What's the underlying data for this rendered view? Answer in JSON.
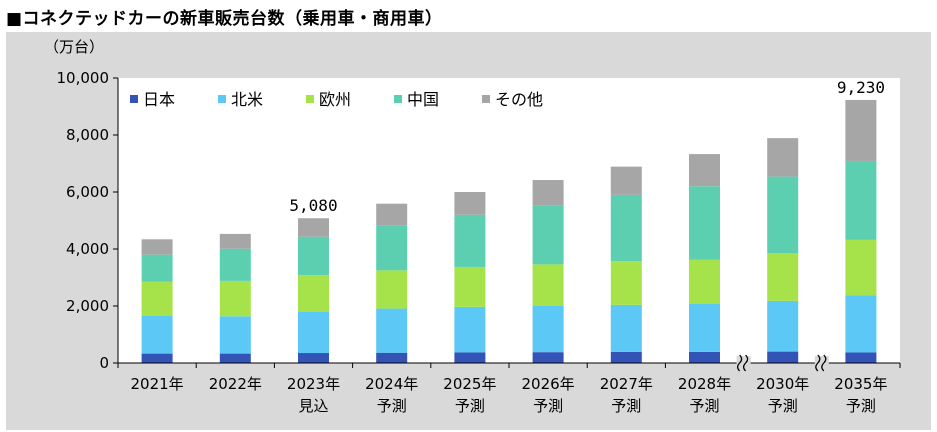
{
  "page": {
    "title": "■コネクテッドカーの新車販売台数（乗用車・商用車）"
  },
  "chart_data": {
    "type": "bar",
    "stacked": true,
    "unit_label": "（万台）",
    "categories": [
      "2021年",
      "2022年",
      "2023年",
      "2024年",
      "2025年",
      "2026年",
      "2027年",
      "2028年",
      "2030年",
      "2035年"
    ],
    "category_sublabels": [
      "",
      "",
      "見込",
      "予測",
      "予測",
      "予測",
      "予測",
      "予測",
      "予測",
      "予測"
    ],
    "ylim": [
      0,
      10000
    ],
    "yticks": [
      0,
      2000,
      4000,
      6000,
      8000,
      10000
    ],
    "ytick_labels": [
      "0",
      "2,000",
      "4,000",
      "6,000",
      "8,000",
      "10,000"
    ],
    "series": [
      {
        "name": "日本",
        "color": "#3353b6",
        "values": [
          330,
          330,
          350,
          360,
          370,
          380,
          390,
          390,
          400,
          370
        ]
      },
      {
        "name": "北米",
        "color": "#5bc8f5",
        "values": [
          1320,
          1310,
          1440,
          1550,
          1600,
          1620,
          1650,
          1680,
          1780,
          2000
        ]
      },
      {
        "name": "欧州",
        "color": "#a6e24a",
        "values": [
          1200,
          1240,
          1290,
          1340,
          1400,
          1460,
          1530,
          1550,
          1680,
          1950
        ]
      },
      {
        "name": "中国",
        "color": "#5ccfb0",
        "values": [
          950,
          1130,
          1350,
          1580,
          1830,
          2080,
          2330,
          2580,
          2680,
          2770
        ]
      },
      {
        "name": "その他",
        "color": "#a6a6a6",
        "values": [
          540,
          520,
          650,
          760,
          800,
          880,
          990,
          1130,
          1350,
          2140
        ]
      }
    ],
    "total_labels": [
      {
        "category": "2023年",
        "text": "5,080"
      },
      {
        "category": "2035年",
        "text": "9,230"
      }
    ],
    "axis_breaks": [
      "2028年-2030年",
      "2030年-2035年"
    ]
  }
}
